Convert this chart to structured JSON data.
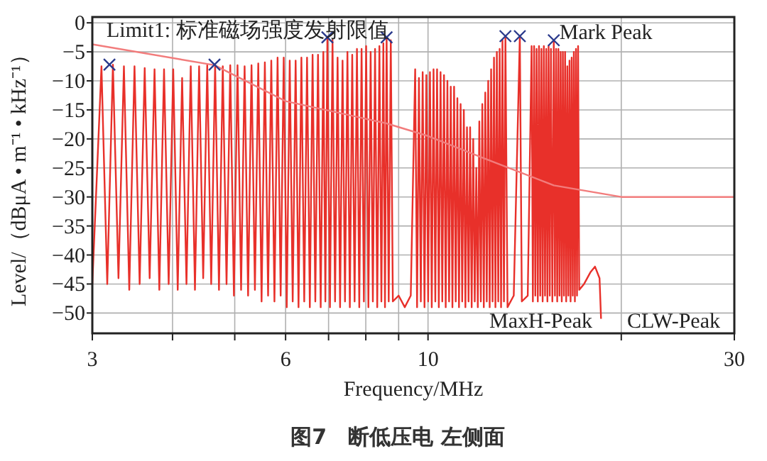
{
  "chart_data": {
    "type": "line",
    "title": "图7　断低压电 左侧面",
    "xlabel": "Frequency/MHz",
    "ylabel": "Level/（dBμA • m⁻¹ • kHz⁻¹）",
    "log": "x",
    "grid": true,
    "xlim": [
      3,
      30
    ],
    "ylim": [
      -53.5,
      1
    ],
    "xticks": [
      3,
      {
        "value": 4,
        "label": null
      },
      {
        "value": 5,
        "label": null
      },
      6,
      {
        "value": 7,
        "label": null
      },
      {
        "value": 8,
        "label": null
      },
      {
        "value": 9,
        "label": null
      },
      10,
      {
        "value": 20,
        "label": null
      },
      30
    ],
    "yticks": [
      0,
      -5,
      -10,
      -15,
      -20,
      -25,
      -30,
      -35,
      -40,
      -45,
      -50
    ],
    "annotations": [
      "Limit1: 标准磁场强度发射限值",
      "Mark Peak",
      "MaxH-Peak",
      "CLW-Peak"
    ],
    "series": [
      {
        "color": "#e8302a",
        "x": [
          3.0,
          3.1,
          3.165,
          3.23,
          3.295,
          3.36,
          3.425,
          3.49,
          3.555,
          3.62,
          3.685,
          3.75,
          3.815,
          3.88,
          3.945,
          4.01,
          4.075,
          4.14,
          4.205,
          4.27,
          4.335,
          4.4,
          4.465,
          4.53,
          4.595,
          4.66,
          4.725,
          4.79,
          4.855,
          4.92,
          4.985,
          5.05,
          5.115,
          5.18,
          5.245,
          5.31,
          5.375,
          5.44,
          5.505,
          5.57,
          5.635,
          5.7,
          5.765,
          5.83,
          5.895,
          5.96,
          6.025,
          6.09,
          6.155,
          6.22,
          6.285,
          6.35,
          6.415,
          6.48,
          6.545,
          6.61,
          6.675,
          6.74,
          6.805,
          6.87,
          6.92,
          6.97,
          7.035,
          7.1,
          7.165,
          7.23,
          7.295,
          7.36,
          7.425,
          7.49,
          7.555,
          7.62,
          7.685,
          7.75,
          7.815,
          7.88,
          7.945,
          8.01,
          8.075,
          8.14,
          8.205,
          8.27,
          8.335,
          8.4,
          8.46,
          8.52,
          8.57,
          8.62,
          8.685,
          8.75,
          8.815,
          9.0,
          9.2,
          9.4,
          9.55,
          9.615,
          9.68,
          9.745,
          9.81,
          9.875,
          9.94,
          10.005,
          10.07,
          10.135,
          10.2,
          10.265,
          10.33,
          10.395,
          10.46,
          10.525,
          10.59,
          10.655,
          10.72,
          10.785,
          10.85,
          10.915,
          10.98,
          11.045,
          11.11,
          11.175,
          11.24,
          11.305,
          11.37,
          11.435,
          11.5,
          11.565,
          11.63,
          11.695,
          11.76,
          11.825,
          11.89,
          11.955,
          12.02,
          12.085,
          12.15,
          12.215,
          12.28,
          12.345,
          12.41,
          12.475,
          12.54,
          12.605,
          12.67,
          12.735,
          12.8,
          12.865,
          12.93,
          12.995,
          13.06,
          13.13,
          13.2,
          13.3,
          13.6,
          13.9,
          14.0,
          14.3,
          14.5,
          14.565,
          14.63,
          14.695,
          14.76,
          14.825,
          14.89,
          14.955,
          15.02,
          15.085,
          15.15,
          15.215,
          15.28,
          15.345,
          15.41,
          15.475,
          15.54,
          15.62,
          15.7,
          15.765,
          15.83,
          15.895,
          15.96,
          16.025,
          16.09,
          16.155,
          16.22,
          16.285,
          16.35,
          16.415,
          16.48,
          16.545,
          16.61,
          16.675,
          16.74,
          16.805,
          16.87,
          16.935,
          17.0,
          17.065,
          17.13,
          17.2,
          17.5,
          17.9,
          18.2,
          18.5,
          18.6
        ],
        "values": [
          -45,
          -7.5,
          -45,
          -7.2,
          -44,
          -7.5,
          -46,
          -7.5,
          -45,
          -7.8,
          -44,
          -8,
          -46,
          -8,
          -45,
          -8,
          -46,
          -9.5,
          -45,
          -7.5,
          -46,
          -7.5,
          -44,
          -7.3,
          -45,
          -7.2,
          -46,
          -7.5,
          -45,
          -7.3,
          -47,
          -7.3,
          -46,
          -7.5,
          -47,
          -7.3,
          -46,
          -7,
          -48,
          -6.8,
          -47,
          -6.5,
          -48,
          -6,
          -47,
          -6,
          -49,
          -6.5,
          -48,
          -6.5,
          -49,
          -6,
          -48,
          -6,
          -49,
          -5.5,
          -48,
          -5.5,
          -49,
          -5,
          -48,
          -2.5,
          -49,
          -3,
          -48,
          -6,
          -49,
          -6.5,
          -48,
          -5,
          -49,
          -5.5,
          -48,
          -4.5,
          -49,
          -4.5,
          -48,
          -4,
          -49,
          -5,
          -48,
          -4.5,
          -49,
          -4,
          -48,
          -3.5,
          -49,
          -2.5,
          -48,
          -3,
          -48,
          -47,
          -49,
          -47,
          -8,
          -49,
          -9.5,
          -48,
          -8.5,
          -49,
          -9,
          -48,
          -8.5,
          -49,
          -8,
          -48,
          -8,
          -49,
          -8.5,
          -48,
          -9,
          -49,
          -10,
          -48,
          -11,
          -49,
          -11,
          -48,
          -13,
          -49,
          -14,
          -48,
          -15,
          -49,
          -18,
          -48,
          -18,
          -49,
          -20,
          -48,
          -25,
          -49,
          -17,
          -48,
          -14,
          -49,
          -12,
          -48,
          -10,
          -49,
          -8,
          -48,
          -6,
          -49,
          -5,
          -48,
          -4.5,
          -49,
          -3,
          -48,
          -2.3,
          -49,
          -47,
          -2.3,
          -48,
          -47,
          -4,
          -48,
          -4,
          -47,
          -4.5,
          -48,
          -4,
          -47,
          -4.5,
          -48,
          -4,
          -47,
          -4.5,
          -48,
          -4,
          -47,
          -4.5,
          -48,
          -3,
          -47,
          -4.5,
          -48,
          -4.5,
          -47,
          -5,
          -48,
          -5,
          -47,
          -5,
          -48,
          -7.5,
          -47,
          -6.5,
          -48,
          -6,
          -47,
          -5,
          -48,
          -4.5,
          -47,
          -4,
          -46,
          -45,
          -43,
          -42,
          -44,
          -51
        ]
      },
      {
        "color": "#f27c7c",
        "x": [
          3,
          4.65,
          6,
          8.6,
          10,
          12.2,
          15.7,
          20,
          30
        ],
        "values": [
          -3.7,
          -7.3,
          -13.5,
          -17.3,
          -19.5,
          -23.3,
          -28,
          -30,
          -30
        ]
      },
      {
        "type": "scatter",
        "color": "#2b3a8c",
        "marker": "cross",
        "x": [
          3.19,
          4.65,
          6.97,
          8.62,
          13.2,
          13.9,
          15.7
        ],
        "values": [
          -7.2,
          -7.2,
          -2.5,
          -2.5,
          -2.3,
          -2.3,
          -3
        ]
      }
    ]
  }
}
